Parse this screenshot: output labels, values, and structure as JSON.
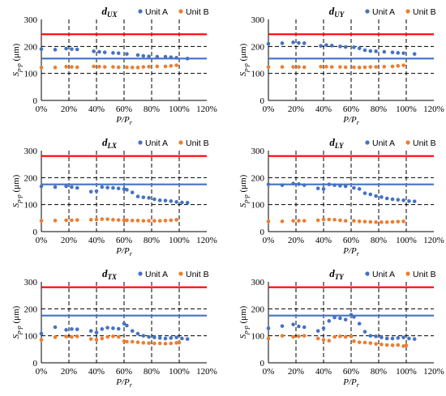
{
  "colors": {
    "unit_a": "#4472C4",
    "unit_b": "#ED7D31",
    "red_line": "#FF0000",
    "blue_line": "#4472C4",
    "grid": "#000000"
  },
  "legend": {
    "unit_a": "Unit A",
    "unit_b": "Unit B"
  },
  "chart_data": [
    {
      "type": "scatter",
      "title_main": "d",
      "title_sub": "UX",
      "xlabel_main": "P/P",
      "xlabel_sub": "r",
      "ylabel_main": "S",
      "ylabel_sub": "p-p",
      "ylabel_unit": " (μm)",
      "xlim": [
        0,
        120
      ],
      "ylim": [
        0,
        300
      ],
      "xticks": [
        0,
        20,
        40,
        60,
        80,
        100,
        120
      ],
      "xtick_labels": [
        "0%",
        "20%",
        "40%",
        "60%",
        "80%",
        "100%",
        "120%"
      ],
      "yticks": [
        0,
        100,
        200,
        300
      ],
      "ytick_labels": [
        "0",
        "100",
        "200",
        "300"
      ],
      "grid_x": [
        20,
        40,
        60,
        80,
        100
      ],
      "grid_y": [
        100,
        200
      ],
      "hlines": [
        {
          "y": 245,
          "color": "red"
        },
        {
          "y": 155,
          "color": "blue"
        }
      ],
      "series": [
        {
          "name": "Unit A",
          "x": [
            0,
            10,
            18,
            22,
            26,
            38,
            42,
            46,
            52,
            56,
            62,
            70,
            74,
            78,
            84,
            90,
            94,
            98,
            106
          ],
          "y": [
            190,
            188,
            192,
            190,
            189,
            182,
            180,
            178,
            176,
            175,
            172,
            168,
            165,
            163,
            162,
            162,
            160,
            158,
            155
          ]
        },
        {
          "name": "Unit B",
          "x": [
            0,
            10,
            18,
            22,
            26,
            38,
            42,
            46,
            52,
            56,
            62,
            66,
            70,
            74,
            78,
            84,
            90,
            94,
            98
          ],
          "y": [
            122,
            122,
            125,
            124,
            123,
            126,
            125,
            124,
            124,
            123,
            123,
            122,
            122,
            124,
            125,
            126,
            126,
            128,
            130
          ]
        }
      ]
    },
    {
      "type": "scatter",
      "title_main": "d",
      "title_sub": "UY",
      "xlabel_main": "P/P",
      "xlabel_sub": "r",
      "ylabel_main": "S",
      "ylabel_sub": "p-p",
      "ylabel_unit": " (μm)",
      "xlim": [
        0,
        120
      ],
      "ylim": [
        0,
        300
      ],
      "xticks": [
        0,
        20,
        40,
        60,
        80,
        100,
        120
      ],
      "xtick_labels": [
        "0%",
        "20%",
        "40%",
        "60%",
        "80%",
        "100%",
        "120%"
      ],
      "yticks": [
        0,
        100,
        200,
        300
      ],
      "ytick_labels": [
        "0",
        "100",
        "200",
        "300"
      ],
      "grid_x": [
        20,
        40,
        60,
        80,
        100
      ],
      "grid_y": [
        100,
        200
      ],
      "hlines": [
        {
          "y": 245,
          "color": "red"
        },
        {
          "y": 155,
          "color": "blue"
        }
      ],
      "series": [
        {
          "name": "Unit A",
          "x": [
            0,
            10,
            18,
            22,
            26,
            38,
            42,
            46,
            52,
            56,
            62,
            66,
            70,
            74,
            78,
            84,
            90,
            94,
            98,
            106
          ],
          "y": [
            210,
            212,
            215,
            213,
            212,
            202,
            205,
            203,
            200,
            198,
            197,
            193,
            186,
            183,
            182,
            180,
            178,
            176,
            175,
            172
          ]
        },
        {
          "name": "Unit B",
          "x": [
            0,
            10,
            18,
            22,
            26,
            38,
            42,
            46,
            52,
            56,
            62,
            66,
            70,
            74,
            78,
            84,
            90,
            94,
            98
          ],
          "y": [
            124,
            124,
            124,
            124,
            123,
            125,
            125,
            124,
            124,
            123,
            123,
            122,
            123,
            124,
            124,
            125,
            126,
            128,
            130
          ]
        }
      ]
    },
    {
      "type": "scatter",
      "title_main": "d",
      "title_sub": "LX",
      "xlabel_main": "P/P",
      "xlabel_sub": "r",
      "ylabel_main": "S",
      "ylabel_sub": "p-p",
      "ylabel_unit": " (μm)",
      "xlim": [
        0,
        120
      ],
      "ylim": [
        0,
        300
      ],
      "xticks": [
        0,
        20,
        40,
        60,
        80,
        100,
        120
      ],
      "xtick_labels": [
        "0%",
        "20%",
        "40%",
        "60%",
        "80%",
        "100%",
        "120%"
      ],
      "yticks": [
        0,
        100,
        200,
        300
      ],
      "ytick_labels": [
        "0",
        "100",
        "200",
        "300"
      ],
      "grid_x": [
        20,
        40,
        60,
        80,
        100
      ],
      "grid_y": [
        100,
        200
      ],
      "hlines": [
        {
          "y": 280,
          "color": "red"
        },
        {
          "y": 175,
          "color": "blue"
        }
      ],
      "series": [
        {
          "name": "Unit A",
          "x": [
            0,
            10,
            18,
            22,
            26,
            36,
            40,
            44,
            48,
            52,
            56,
            60,
            62,
            66,
            70,
            74,
            78,
            82,
            86,
            90,
            94,
            98,
            102,
            106
          ],
          "y": [
            168,
            165,
            168,
            165,
            162,
            148,
            150,
            165,
            163,
            162,
            160,
            158,
            155,
            145,
            130,
            127,
            125,
            120,
            116,
            115,
            113,
            110,
            108,
            107
          ]
        },
        {
          "name": "Unit B",
          "x": [
            0,
            10,
            18,
            22,
            26,
            36,
            40,
            44,
            48,
            52,
            56,
            60,
            62,
            66,
            70,
            74,
            78,
            82,
            86,
            90,
            94,
            98
          ],
          "y": [
            40,
            41,
            42,
            42,
            43,
            44,
            45,
            46,
            46,
            44,
            43,
            42,
            42,
            41,
            41,
            40,
            40,
            40,
            40,
            41,
            42,
            44
          ]
        }
      ]
    },
    {
      "type": "scatter",
      "title_main": "d",
      "title_sub": "LY",
      "xlabel_main": "P/P",
      "xlabel_sub": "r",
      "ylabel_main": "S",
      "ylabel_sub": "p-p",
      "ylabel_unit": " (μm)",
      "xlim": [
        0,
        120
      ],
      "ylim": [
        0,
        300
      ],
      "xticks": [
        0,
        20,
        40,
        60,
        80,
        100,
        120
      ],
      "xtick_labels": [
        "0%",
        "20%",
        "40%",
        "60%",
        "80%",
        "100%",
        "120%"
      ],
      "yticks": [
        0,
        100,
        200,
        300
      ],
      "ytick_labels": [
        "0",
        "100",
        "200",
        "300"
      ],
      "grid_x": [
        20,
        40,
        60,
        80,
        100
      ],
      "grid_y": [
        100,
        200
      ],
      "hlines": [
        {
          "y": 280,
          "color": "red"
        },
        {
          "y": 175,
          "color": "blue"
        }
      ],
      "series": [
        {
          "name": "Unit A",
          "x": [
            0,
            10,
            18,
            22,
            26,
            36,
            40,
            44,
            48,
            52,
            56,
            62,
            66,
            70,
            74,
            78,
            82,
            86,
            90,
            94,
            98,
            102,
            106
          ],
          "y": [
            175,
            172,
            178,
            176,
            172,
            160,
            158,
            175,
            172,
            170,
            168,
            162,
            158,
            142,
            138,
            132,
            128,
            123,
            120,
            118,
            116,
            113,
            112
          ]
        },
        {
          "name": "Unit B",
          "x": [
            0,
            10,
            18,
            22,
            26,
            36,
            40,
            44,
            48,
            52,
            56,
            62,
            66,
            70,
            74,
            78,
            82,
            86,
            90,
            94,
            98
          ],
          "y": [
            38,
            38,
            40,
            40,
            40,
            42,
            45,
            45,
            44,
            42,
            40,
            40,
            38,
            37,
            36,
            35,
            35,
            35,
            36,
            37,
            38
          ]
        }
      ]
    },
    {
      "type": "scatter",
      "title_main": "d",
      "title_sub": "TX",
      "xlabel_main": "P/P",
      "xlabel_sub": "r",
      "ylabel_main": "S",
      "ylabel_sub": "p-p",
      "ylabel_unit": " (μm)",
      "xlim": [
        0,
        120
      ],
      "ylim": [
        0,
        300
      ],
      "xticks": [
        0,
        20,
        40,
        60,
        80,
        100,
        120
      ],
      "xtick_labels": [
        "0%",
        "20%",
        "40%",
        "60%",
        "80%",
        "100%",
        "120%"
      ],
      "yticks": [
        0,
        100,
        200,
        300
      ],
      "ytick_labels": [
        "0",
        "100",
        "200",
        "300"
      ],
      "grid_x": [
        20,
        40,
        60,
        80,
        100
      ],
      "grid_y": [
        100,
        200
      ],
      "hlines": [
        {
          "y": 280,
          "color": "red"
        },
        {
          "y": 175,
          "color": "blue"
        }
      ],
      "series": [
        {
          "name": "Unit A",
          "x": [
            0,
            10,
            18,
            22,
            26,
            36,
            40,
            44,
            48,
            52,
            56,
            60,
            62,
            66,
            70,
            74,
            78,
            82,
            86,
            90,
            94,
            98,
            102,
            106
          ],
          "y": [
            108,
            132,
            122,
            125,
            124,
            118,
            112,
            125,
            130,
            128,
            126,
            145,
            138,
            118,
            108,
            100,
            96,
            94,
            92,
            90,
            92,
            94,
            90,
            88
          ]
        },
        {
          "name": "Unit B",
          "x": [
            0,
            10,
            18,
            22,
            26,
            36,
            40,
            44,
            48,
            52,
            56,
            60,
            62,
            66,
            70,
            74,
            78,
            82,
            86,
            90,
            94,
            98,
            100
          ],
          "y": [
            85,
            95,
            97,
            96,
            98,
            88,
            86,
            90,
            96,
            98,
            96,
            80,
            78,
            78,
            76,
            74,
            73,
            72,
            72,
            71,
            72,
            74,
            75
          ]
        }
      ]
    },
    {
      "type": "scatter",
      "title_main": "d",
      "title_sub": "TY",
      "xlabel_main": "P/P",
      "xlabel_sub": "r",
      "ylabel_main": "S",
      "ylabel_sub": "p-p",
      "ylabel_unit": " (μm)",
      "xlim": [
        0,
        120
      ],
      "ylim": [
        0,
        300
      ],
      "xticks": [
        0,
        20,
        40,
        60,
        80,
        100,
        120
      ],
      "xtick_labels": [
        "0%",
        "20%",
        "40%",
        "60%",
        "80%",
        "100%",
        "120%"
      ],
      "yticks": [
        0,
        100,
        200,
        300
      ],
      "ytick_labels": [
        "0",
        "100",
        "200",
        "300"
      ],
      "grid_x": [
        20,
        40,
        60,
        80,
        100
      ],
      "grid_y": [
        100,
        200
      ],
      "hlines": [
        {
          "y": 280,
          "color": "red"
        },
        {
          "y": 175,
          "color": "blue"
        }
      ],
      "series": [
        {
          "name": "Unit A",
          "x": [
            0,
            10,
            18,
            22,
            26,
            36,
            40,
            44,
            48,
            52,
            56,
            60,
            62,
            66,
            70,
            74,
            78,
            82,
            86,
            90,
            94,
            98,
            102,
            106
          ],
          "y": [
            128,
            136,
            142,
            135,
            132,
            118,
            128,
            155,
            168,
            165,
            160,
            178,
            170,
            145,
            115,
            100,
            98,
            94,
            90,
            90,
            92,
            94,
            90,
            88
          ]
        },
        {
          "name": "Unit B",
          "x": [
            0,
            10,
            18,
            22,
            26,
            36,
            40,
            44,
            48,
            52,
            56,
            60,
            62,
            66,
            70,
            74,
            78,
            82,
            86,
            90,
            94,
            98,
            100
          ],
          "y": [
            90,
            100,
            96,
            98,
            100,
            90,
            85,
            82,
            96,
            98,
            96,
            98,
            80,
            76,
            75,
            73,
            70,
            68,
            66,
            65,
            66,
            62,
            64
          ]
        }
      ]
    }
  ]
}
